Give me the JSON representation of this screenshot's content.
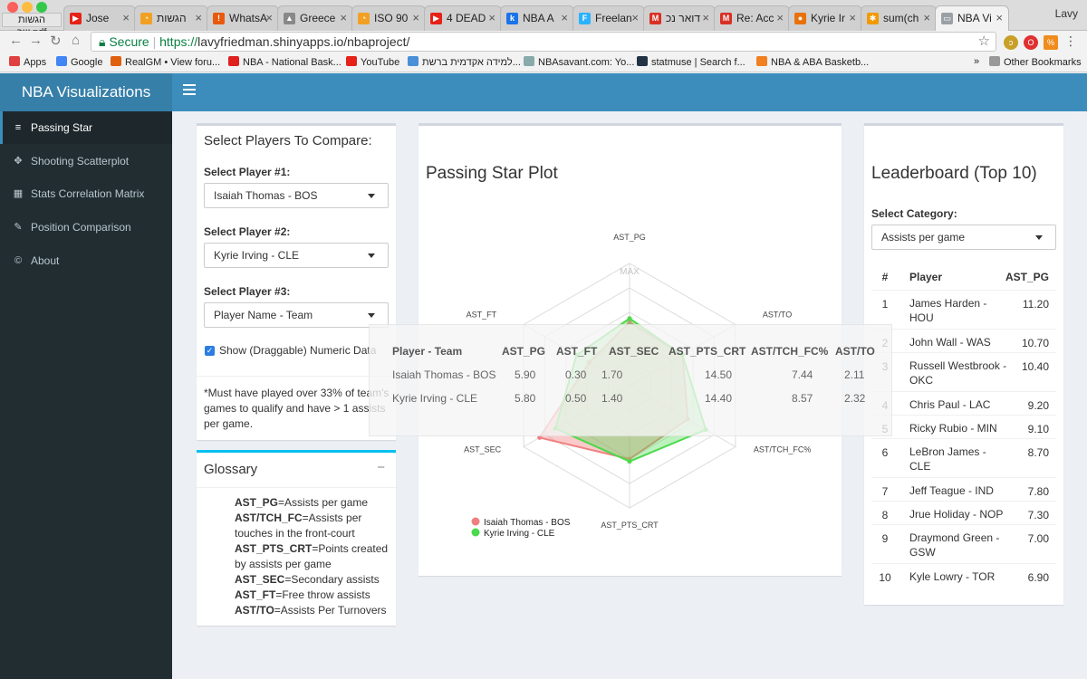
{
  "browser": {
    "pdf_label": "הגשות שב.pdf",
    "tabs": [
      {
        "label": "Jose",
        "icon": "youtube-icon"
      },
      {
        "label": "הגשות",
        "icon": "chart-icon"
      },
      {
        "label": "WhatsA",
        "icon": "whatsapp-icon"
      },
      {
        "label": "Greece",
        "icon": "image-icon"
      },
      {
        "label": "ISO 90",
        "icon": "chart-icon"
      },
      {
        "label": "4 DEAD",
        "icon": "youtube-icon"
      },
      {
        "label": "NBA A",
        "icon": "k-icon"
      },
      {
        "label": "Freelan",
        "icon": "freelancer-icon"
      },
      {
        "label": "דואר נכ",
        "icon": "gmail-icon"
      },
      {
        "label": "Re: Acc",
        "icon": "gmail-icon"
      },
      {
        "label": "Kyrie Ir",
        "icon": "basketball-icon"
      },
      {
        "label": "sum(ch",
        "icon": "gear-icon"
      },
      {
        "label": "NBA Vi",
        "icon": "page-icon"
      }
    ],
    "user": "Lavy",
    "secure_label": "Secure",
    "url_proto": "https://",
    "url_rest": "lavyfriedman.shinyapps.io/nbaproject/",
    "bookmarks": [
      "Apps",
      "Google",
      "RealGM • View foru...",
      "NBA - National Bask...",
      "YouTube",
      "למידה אקדמית ברשת...",
      "NBAsavant.com: Yo...",
      "statmuse | Search f...",
      "NBA & ABA Basketb..."
    ],
    "bookmarks_overflow": "»",
    "other_bookmarks": "Other Bookmarks"
  },
  "app": {
    "logo": "NBA Visualizations",
    "sidebar": [
      {
        "label": "Passing Star",
        "icon": "database-icon",
        "active": true
      },
      {
        "label": "Shooting Scatterplot",
        "icon": "crosshair-icon",
        "active": false
      },
      {
        "label": "Stats Correlation Matrix",
        "icon": "grid-icon",
        "active": false
      },
      {
        "label": "Position Comparison",
        "icon": "pen-icon",
        "active": false
      },
      {
        "label": "About",
        "icon": "copyright-icon",
        "active": false
      }
    ]
  },
  "compare": {
    "title": "Select Players To Compare:",
    "player1_label": "Select Player #1:",
    "player1_value": "Isaiah Thomas - BOS",
    "player2_label": "Select Player #2:",
    "player2_value": "Kyrie Irving - CLE",
    "player3_label": "Select Player #3:",
    "player3_value": "Player Name - Team",
    "show_data_label": "Show (Draggable) Numeric Data",
    "show_data_checked": true,
    "note": "*Must have played over 33% of team's games to qualify and have > 1 assists per game."
  },
  "glossary": {
    "title": "Glossary",
    "collapse": "−",
    "items": [
      {
        "term": "AST_PG",
        "def": "=Assists per game"
      },
      {
        "term": "AST/TCH_FC",
        "def": "=Assists per touches in the front-court"
      },
      {
        "term": "AST_PTS_CRT",
        "def": "=Points created by assists per game"
      },
      {
        "term": "AST_SEC",
        "def": "=Secondary assists"
      },
      {
        "term": "AST_FT",
        "def": "=Free throw assists"
      },
      {
        "term": "AST/TO",
        "def": "=Assists Per Turnovers"
      }
    ]
  },
  "plot": {
    "title": "Passing Star Plot",
    "max_label": "MAX",
    "axes": [
      "AST_PG",
      "AST/TO",
      "AST/TCH_FC%",
      "AST_PTS_CRT",
      "AST_SEC",
      "AST_FT"
    ],
    "series": [
      {
        "name": "Isaiah Thomas - BOS",
        "color": "#f08080",
        "fill": "rgba(240,100,100,0.35)",
        "values": [
          0.52,
          0.5,
          0.55,
          0.6,
          0.85,
          0.38
        ]
      },
      {
        "name": "Kyrie Irving - CLE",
        "color": "#4cd94c",
        "fill": "rgba(90,220,90,0.4)",
        "values": [
          0.55,
          0.5,
          0.72,
          0.62,
          0.7,
          0.5
        ]
      }
    ]
  },
  "numeric_data": {
    "headers": [
      "Player - Team",
      "AST_PG",
      "AST_FT",
      "AST_SEC",
      "AST_PTS_CRT",
      "AST/TCH_FC%",
      "AST/TO"
    ],
    "rows": [
      [
        "Isaiah Thomas - BOS",
        "5.90",
        "0.30",
        "1.70",
        "14.50",
        "7.44",
        "2.11"
      ],
      [
        "Kyrie Irving - CLE",
        "5.80",
        "0.50",
        "1.40",
        "14.40",
        "8.57",
        "2.32"
      ]
    ]
  },
  "leaderboard": {
    "title": "Leaderboard (Top 10)",
    "category_label": "Select Category:",
    "category_value": "Assists per game",
    "headers": [
      "#",
      "Player",
      "AST_PG"
    ],
    "rows": [
      {
        "rank": "1",
        "player": "James Harden - HOU",
        "value": "11.20"
      },
      {
        "rank": "2",
        "player": "John Wall - WAS",
        "value": "10.70"
      },
      {
        "rank": "3",
        "player": "Russell Westbrook - OKC",
        "value": "10.40"
      },
      {
        "rank": "4",
        "player": "Chris Paul - LAC",
        "value": "9.20"
      },
      {
        "rank": "5",
        "player": "Ricky Rubio - MIN",
        "value": "9.10"
      },
      {
        "rank": "6",
        "player": "LeBron James - CLE",
        "value": "8.70"
      },
      {
        "rank": "7",
        "player": "Jeff Teague - IND",
        "value": "7.80"
      },
      {
        "rank": "8",
        "player": "Jrue Holiday - NOP",
        "value": "7.30"
      },
      {
        "rank": "9",
        "player": "Draymond Green - GSW",
        "value": "7.00"
      },
      {
        "rank": "10",
        "player": "Kyle Lowry - TOR",
        "value": "6.90"
      }
    ]
  }
}
